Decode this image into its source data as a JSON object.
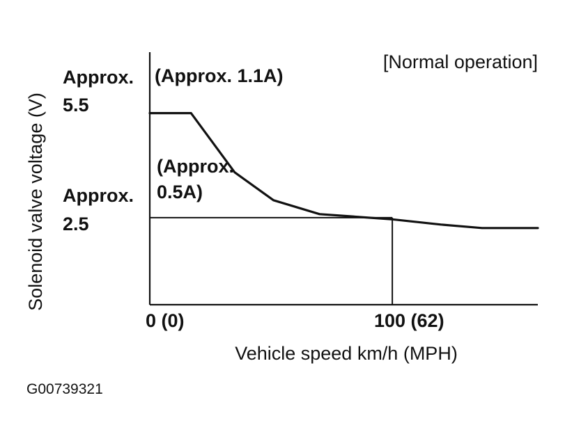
{
  "chart_data": {
    "type": "line",
    "title": "[Normal operation]",
    "xlabel": "Vehicle speed km/h (MPH)",
    "ylabel": "Solenoid valve voltage (V)",
    "xlim": [
      0,
      160
    ],
    "ylim": [
      0,
      7.25
    ],
    "series": [
      {
        "name": "Solenoid valve voltage",
        "x": [
          0,
          17,
          35,
          51,
          70,
          100,
          120,
          137,
          160
        ],
        "y": [
          5.5,
          5.5,
          3.8,
          3.0,
          2.6,
          2.45,
          2.3,
          2.2,
          2.2
        ]
      }
    ],
    "reference_level": 2.5,
    "reference_speed": 100,
    "x_ticks": [
      {
        "value": 0,
        "label": "0  (0)"
      },
      {
        "value": 100,
        "label": "100  (62)"
      }
    ],
    "y_ticks": [
      {
        "value": 5.5,
        "label_line1": "Approx.",
        "label_line2": "5.5"
      },
      {
        "value": 2.5,
        "label_line1": "Approx.",
        "label_line2": "2.5"
      }
    ],
    "annotations": {
      "high_current": "(Approx.  1.1A)",
      "low_current_line1": "(Approx.",
      "low_current_line2": "0.5A)"
    }
  },
  "figure_id": "G00739321"
}
